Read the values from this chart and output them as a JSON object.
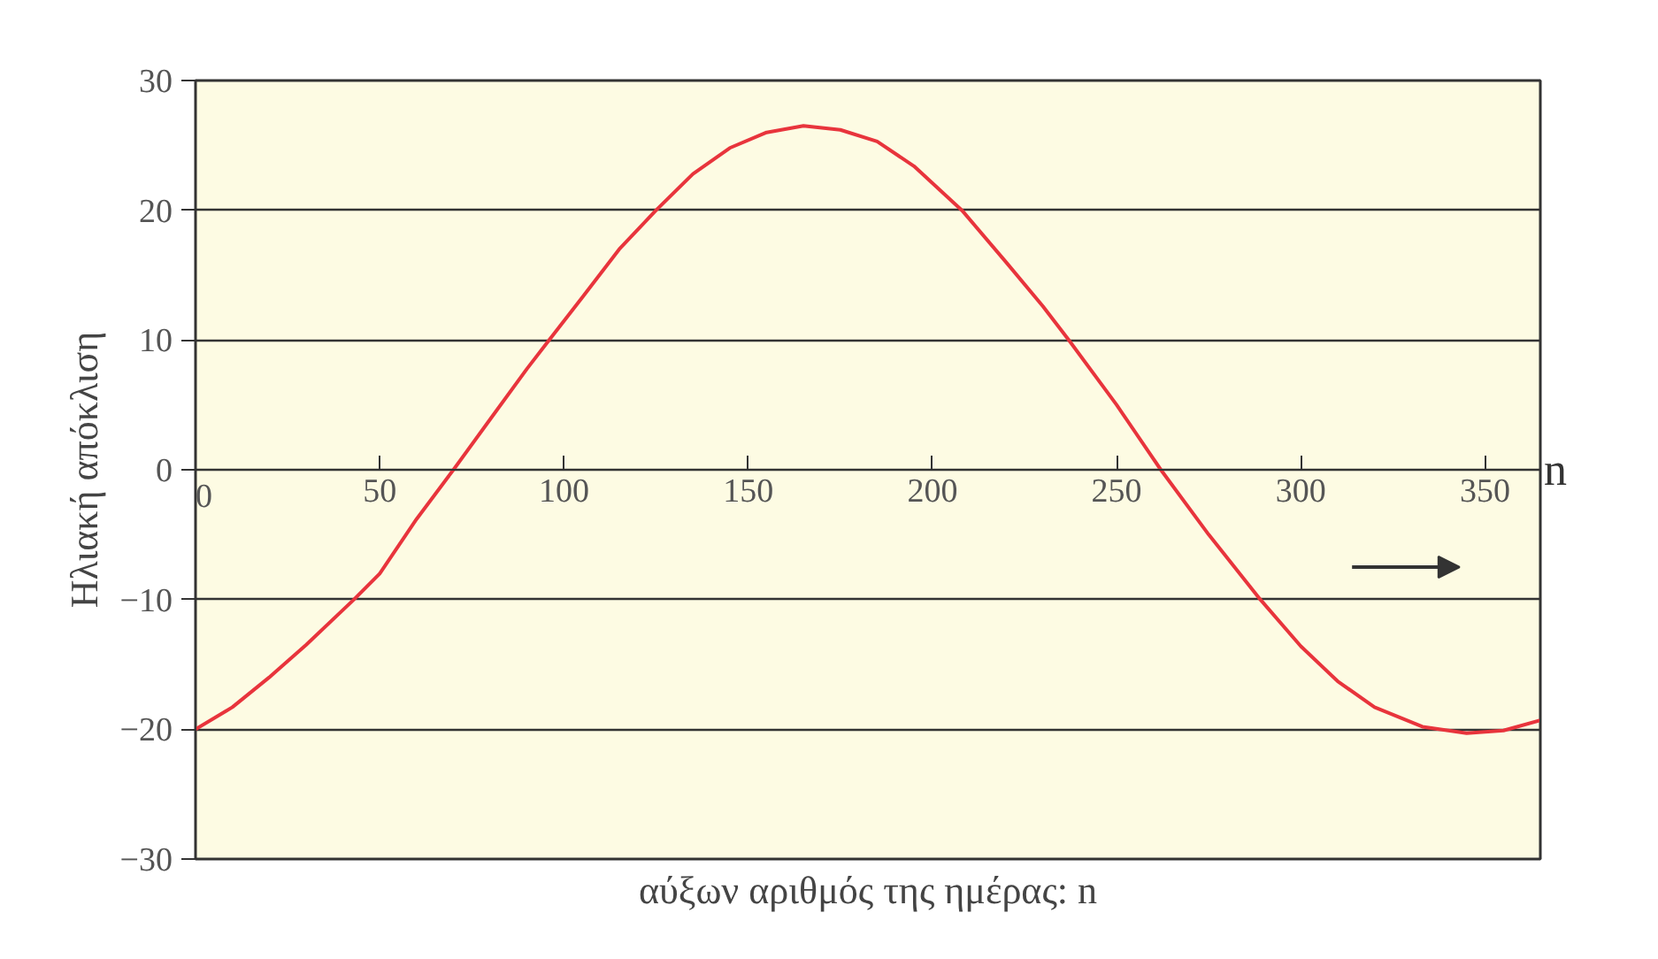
{
  "chart_data": {
    "type": "line",
    "xlabel": "αύξων αριθμός της ημέρας: n",
    "ylabel": "Ηλιακή απόκλιση",
    "annotations": [
      "n"
    ],
    "x": [
      0,
      10,
      20,
      30,
      43,
      50,
      60,
      70,
      80,
      90,
      96,
      105,
      115,
      125,
      135,
      145,
      155,
      165,
      175,
      185,
      195,
      208,
      220,
      230,
      237,
      250,
      262,
      275,
      289,
      300,
      310,
      320,
      333,
      345,
      355,
      365
    ],
    "series": [
      {
        "color": "#e8343c",
        "values": [
          -20,
          -18.3,
          -16.0,
          -13.5,
          -10,
          -8,
          -3.8,
          0,
          3.9,
          7.8,
          10,
          13.3,
          17,
          20,
          22.8,
          24.8,
          26,
          26.5,
          26.2,
          25.3,
          23.4,
          20,
          16,
          12.6,
          10,
          5,
          0,
          -5,
          -10,
          -13.6,
          -16.3,
          -18.3,
          -19.8,
          -20.3,
          -20.1,
          -19.3
        ]
      }
    ],
    "xlim": [
      0,
      365
    ],
    "ylim": [
      -30,
      30
    ],
    "xticks": [
      0,
      50,
      100,
      150,
      200,
      250,
      300,
      350
    ],
    "yticks": [
      -30,
      -20,
      -10,
      0,
      10,
      20,
      30
    ],
    "grid": "y",
    "marker": "none",
    "line_style": "solid"
  }
}
